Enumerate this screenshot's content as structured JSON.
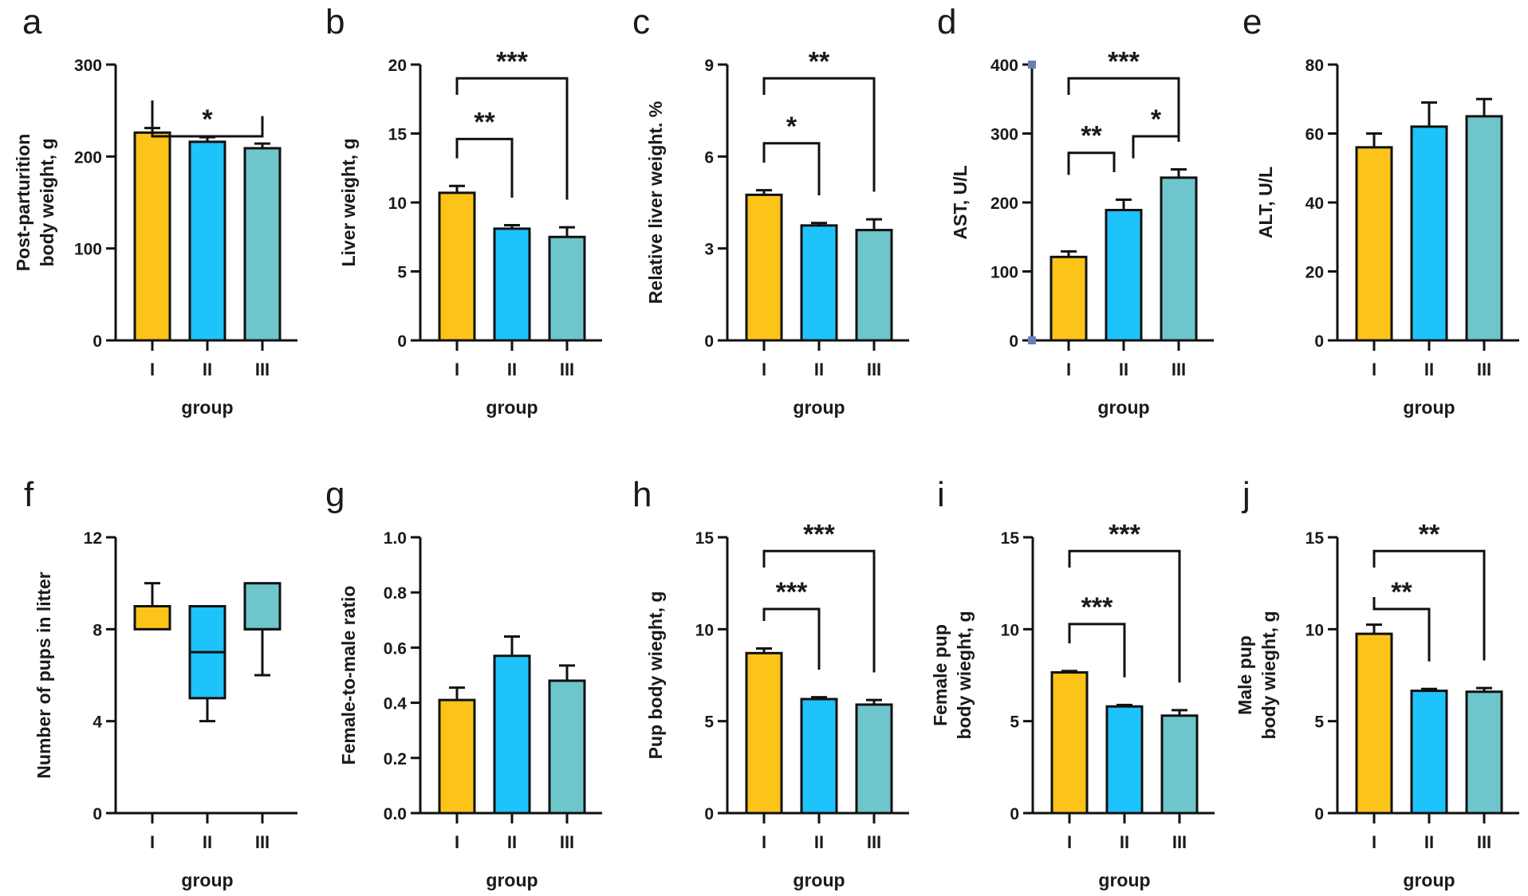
{
  "figure": {
    "group_colors": [
      "#fcc419",
      "#1ec3fb",
      "#6ec6cc"
    ],
    "axis_marker_color": "#6a7fb8"
  },
  "chart_data": [
    {
      "id": "a",
      "type": "bar",
      "panel_label": "a",
      "title": "",
      "xlabel": "group",
      "ylabel": [
        "Post-parturition",
        "body weight, g"
      ],
      "categories": [
        "I",
        "II",
        "III"
      ],
      "values": [
        226,
        216,
        209
      ],
      "errors": [
        5,
        5,
        5
      ],
      "ylim": [
        0,
        300
      ],
      "yticks": [
        0,
        100,
        200,
        300
      ],
      "ytick_labels": [
        "0",
        "100",
        "200",
        "300"
      ],
      "significance": [
        {
          "from": 0,
          "to": 2,
          "label": "*",
          "level": 1
        }
      ]
    },
    {
      "id": "b",
      "type": "bar",
      "panel_label": "b",
      "title": "",
      "xlabel": "group",
      "ylabel": [
        "Liver weight, g"
      ],
      "categories": [
        "I",
        "II",
        "III"
      ],
      "values": [
        10.7,
        8.1,
        7.5
      ],
      "errors": [
        0.5,
        0.25,
        0.7
      ],
      "ylim": [
        0,
        20
      ],
      "yticks": [
        0,
        5,
        10,
        15,
        20
      ],
      "ytick_labels": [
        "0",
        "5",
        "10",
        "15",
        "20"
      ],
      "significance": [
        {
          "from": 0,
          "to": 1,
          "label": "**",
          "level": 1
        },
        {
          "from": 0,
          "to": 2,
          "label": "***",
          "level": 2
        }
      ]
    },
    {
      "id": "c",
      "type": "bar",
      "panel_label": "c",
      "title": "",
      "xlabel": "group",
      "ylabel": [
        "Relative liver weight. %"
      ],
      "categories": [
        "I",
        "II",
        "III"
      ],
      "values": [
        4.75,
        3.75,
        3.6
      ],
      "errors": [
        0.15,
        0.08,
        0.35
      ],
      "ylim": [
        0,
        9
      ],
      "yticks": [
        0,
        3,
        6,
        9
      ],
      "ytick_labels": [
        "0",
        "3",
        "6",
        "9"
      ],
      "significance": [
        {
          "from": 0,
          "to": 1,
          "label": "*",
          "level": 1
        },
        {
          "from": 0,
          "to": 2,
          "label": "**",
          "level": 2
        }
      ]
    },
    {
      "id": "d",
      "type": "bar",
      "panel_label": "d",
      "title": "",
      "xlabel": "group",
      "ylabel": [
        "AST, U/L"
      ],
      "categories": [
        "I",
        "II",
        "III"
      ],
      "values": [
        121,
        189,
        236
      ],
      "errors": [
        8,
        15,
        12
      ],
      "ylim": [
        0,
        400
      ],
      "yticks": [
        0,
        100,
        200,
        300,
        400
      ],
      "ytick_labels": [
        "0",
        "100",
        "200",
        "300",
        "400"
      ],
      "axis_markers": true,
      "significance": [
        {
          "from": 0,
          "to": 1,
          "label": "**",
          "level": 1
        },
        {
          "from": 1,
          "to": 2,
          "label": "*",
          "level": 1
        },
        {
          "from": 0,
          "to": 2,
          "label": "***",
          "level": 2
        }
      ]
    },
    {
      "id": "e",
      "type": "bar",
      "panel_label": "e",
      "title": "",
      "xlabel": "group",
      "ylabel": [
        "ALT, U/L"
      ],
      "categories": [
        "I",
        "II",
        "III"
      ],
      "values": [
        56,
        62,
        65
      ],
      "errors": [
        4,
        7,
        5
      ],
      "ylim": [
        0,
        80
      ],
      "yticks": [
        0,
        20,
        40,
        60,
        80
      ],
      "ytick_labels": [
        "0",
        "20",
        "40",
        "60",
        "80"
      ],
      "significance": []
    },
    {
      "id": "f",
      "type": "box",
      "panel_label": "f",
      "title": "",
      "xlabel": "group",
      "ylabel": [
        "Number of pups in litter"
      ],
      "categories": [
        "I",
        "II",
        "III"
      ],
      "boxes": [
        {
          "min": 8,
          "q1": 8,
          "median": 9,
          "q3": 9,
          "max": 10
        },
        {
          "min": 4,
          "q1": 5,
          "median": 7,
          "q3": 9,
          "max": 9
        },
        {
          "min": 6,
          "q1": 8,
          "median": 8,
          "q3": 10,
          "max": 10
        }
      ],
      "ylim": [
        0,
        12
      ],
      "yticks": [
        0,
        4,
        8,
        12
      ],
      "ytick_labels": [
        "0",
        "4",
        "8",
        "12"
      ],
      "significance": []
    },
    {
      "id": "g",
      "type": "bar",
      "panel_label": "g",
      "title": "",
      "xlabel": "group",
      "ylabel": [
        "Female-to-male ratio"
      ],
      "categories": [
        "I",
        "II",
        "III"
      ],
      "values": [
        0.41,
        0.57,
        0.48
      ],
      "errors": [
        0.045,
        0.07,
        0.055
      ],
      "ylim": [
        0,
        1.0
      ],
      "yticks": [
        0,
        0.2,
        0.4,
        0.6,
        0.8,
        1.0
      ],
      "ytick_labels": [
        "0.0",
        "0.2",
        "0.4",
        "0.6",
        "0.8",
        "1.0"
      ],
      "significance": []
    },
    {
      "id": "h",
      "type": "bar",
      "panel_label": "h",
      "title": "",
      "xlabel": "group",
      "ylabel": [
        "Pup body wieght, g"
      ],
      "categories": [
        "I",
        "II",
        "III"
      ],
      "values": [
        8.7,
        6.2,
        5.9
      ],
      "errors": [
        0.25,
        0.1,
        0.25
      ],
      "ylim": [
        0,
        15
      ],
      "yticks": [
        0,
        5,
        10,
        15
      ],
      "ytick_labels": [
        "0",
        "5",
        "10",
        "15"
      ],
      "significance": [
        {
          "from": 0,
          "to": 1,
          "label": "***",
          "level": 1
        },
        {
          "from": 0,
          "to": 2,
          "label": "***",
          "level": 2
        }
      ]
    },
    {
      "id": "i",
      "type": "bar",
      "panel_label": "i",
      "title": "",
      "xlabel": "group",
      "ylabel": [
        "Female pup",
        "body wieght, g"
      ],
      "categories": [
        "I",
        "II",
        "III"
      ],
      "values": [
        7.65,
        5.8,
        5.3
      ],
      "errors": [
        0.08,
        0.08,
        0.3
      ],
      "ylim": [
        0,
        15
      ],
      "yticks": [
        0,
        5,
        10,
        15
      ],
      "ytick_labels": [
        "0",
        "5",
        "10",
        "15"
      ],
      "significance": [
        {
          "from": 0,
          "to": 1,
          "label": "***",
          "level": 1
        },
        {
          "from": 0,
          "to": 2,
          "label": "***",
          "level": 2
        }
      ]
    },
    {
      "id": "j",
      "type": "bar",
      "panel_label": "j",
      "title": "",
      "xlabel": "group",
      "ylabel": [
        "Male pup",
        "body wieght, g"
      ],
      "categories": [
        "I",
        "II",
        "III"
      ],
      "values": [
        9.75,
        6.65,
        6.6
      ],
      "errors": [
        0.5,
        0.1,
        0.2
      ],
      "ylim": [
        0,
        15
      ],
      "yticks": [
        0,
        5,
        10,
        15
      ],
      "ytick_labels": [
        "0",
        "5",
        "10",
        "15"
      ],
      "significance": [
        {
          "from": 0,
          "to": 1,
          "label": "**",
          "level": 1
        },
        {
          "from": 0,
          "to": 2,
          "label": "**",
          "level": 2
        }
      ]
    }
  ]
}
